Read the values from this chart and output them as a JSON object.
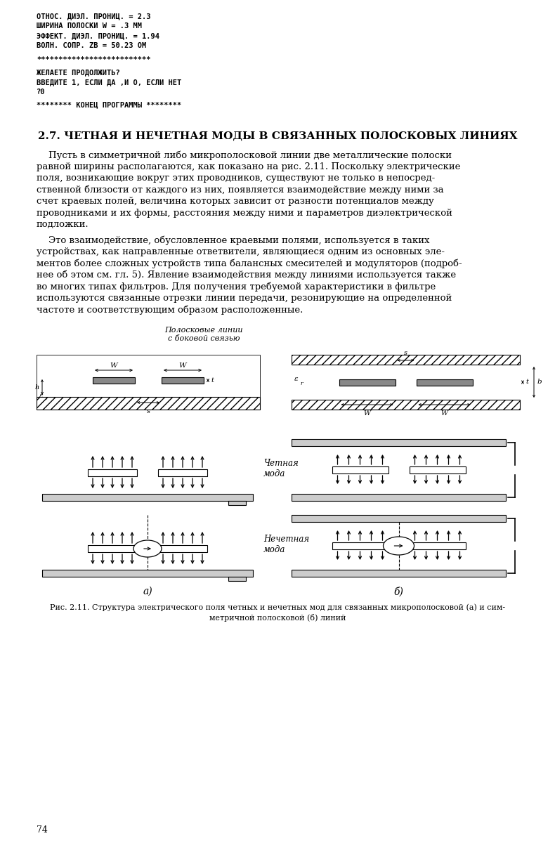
{
  "page_width": 7.9,
  "page_height": 12.0,
  "bg_color": "#ffffff",
  "monospace_lines": [
    "ОТНОС. ДИЭЛ. ПРОНИЦ. = 2.3",
    "ШИРИНА ПОЛОСКИ W = .3 ММ",
    "ЭФФЕКТ. ДИЭЛ. ПРОНИЦ. = 1.94",
    "ВОЛН. СОПР. ZB = 50.23 ОМ"
  ],
  "stars_line": "**************************",
  "prompt_lines": [
    "ЖЕЛАЕТЕ ПРОДОЛЖИТЬ?",
    "ВВЕДИТЕ 1, ЕСЛИ ДА ,И О, ЕСЛИ НЕТ",
    "?0"
  ],
  "end_line": "******** КОНЕЦ ПРОГРАММЫ ********",
  "section_title": "2.7. ЧЕТНАЯ И НЕЧЕТНАЯ МОДЫ В СВЯЗАННЫХ ПОЛОСКОВЫХ ЛИНИЯХ",
  "para1_lines": [
    "    Пусть в симметричной либо микрополосковой линии две металлические полоски",
    "равной ширины располагаются, как показано на рис. 2.11. Поскольку электрические",
    "поля, возникающие вокруг этих проводников, существуют не только в непосред-",
    "ственной близости от каждого из них, появляется взаимодействие между ними за",
    "счет краевых полей, величина которых зависит от разности потенциалов между",
    "проводниками и их формы, расстояния между ними и параметров диэлектрической",
    "подложки."
  ],
  "para2_lines": [
    "    Это взаимодействие, обусловленное краевыми полями, используется в таких",
    "устройствах, как направленные ответвители, являющиеся одним из основных эле-",
    "ментов более сложных устройств типа балансных смесителей и модуляторов (подроб-",
    "нее об этом см. гл. 5). Явление взаимодействия между линиями используется также",
    "во многих типах фильтров. Для получения требуемой характеристики в фильтре",
    "используются связанные отрезки линии передачи, резонирующие на определенной",
    "частоте и соответствующим образом расположенные."
  ],
  "fig_caption_line1": "Рис. 2.11. Структура электрического поля четных и нечетных мод для связанных микрополосковой (а) и сим-",
  "fig_caption_line2": "метричной полосковой (б) линий",
  "page_number": "74"
}
